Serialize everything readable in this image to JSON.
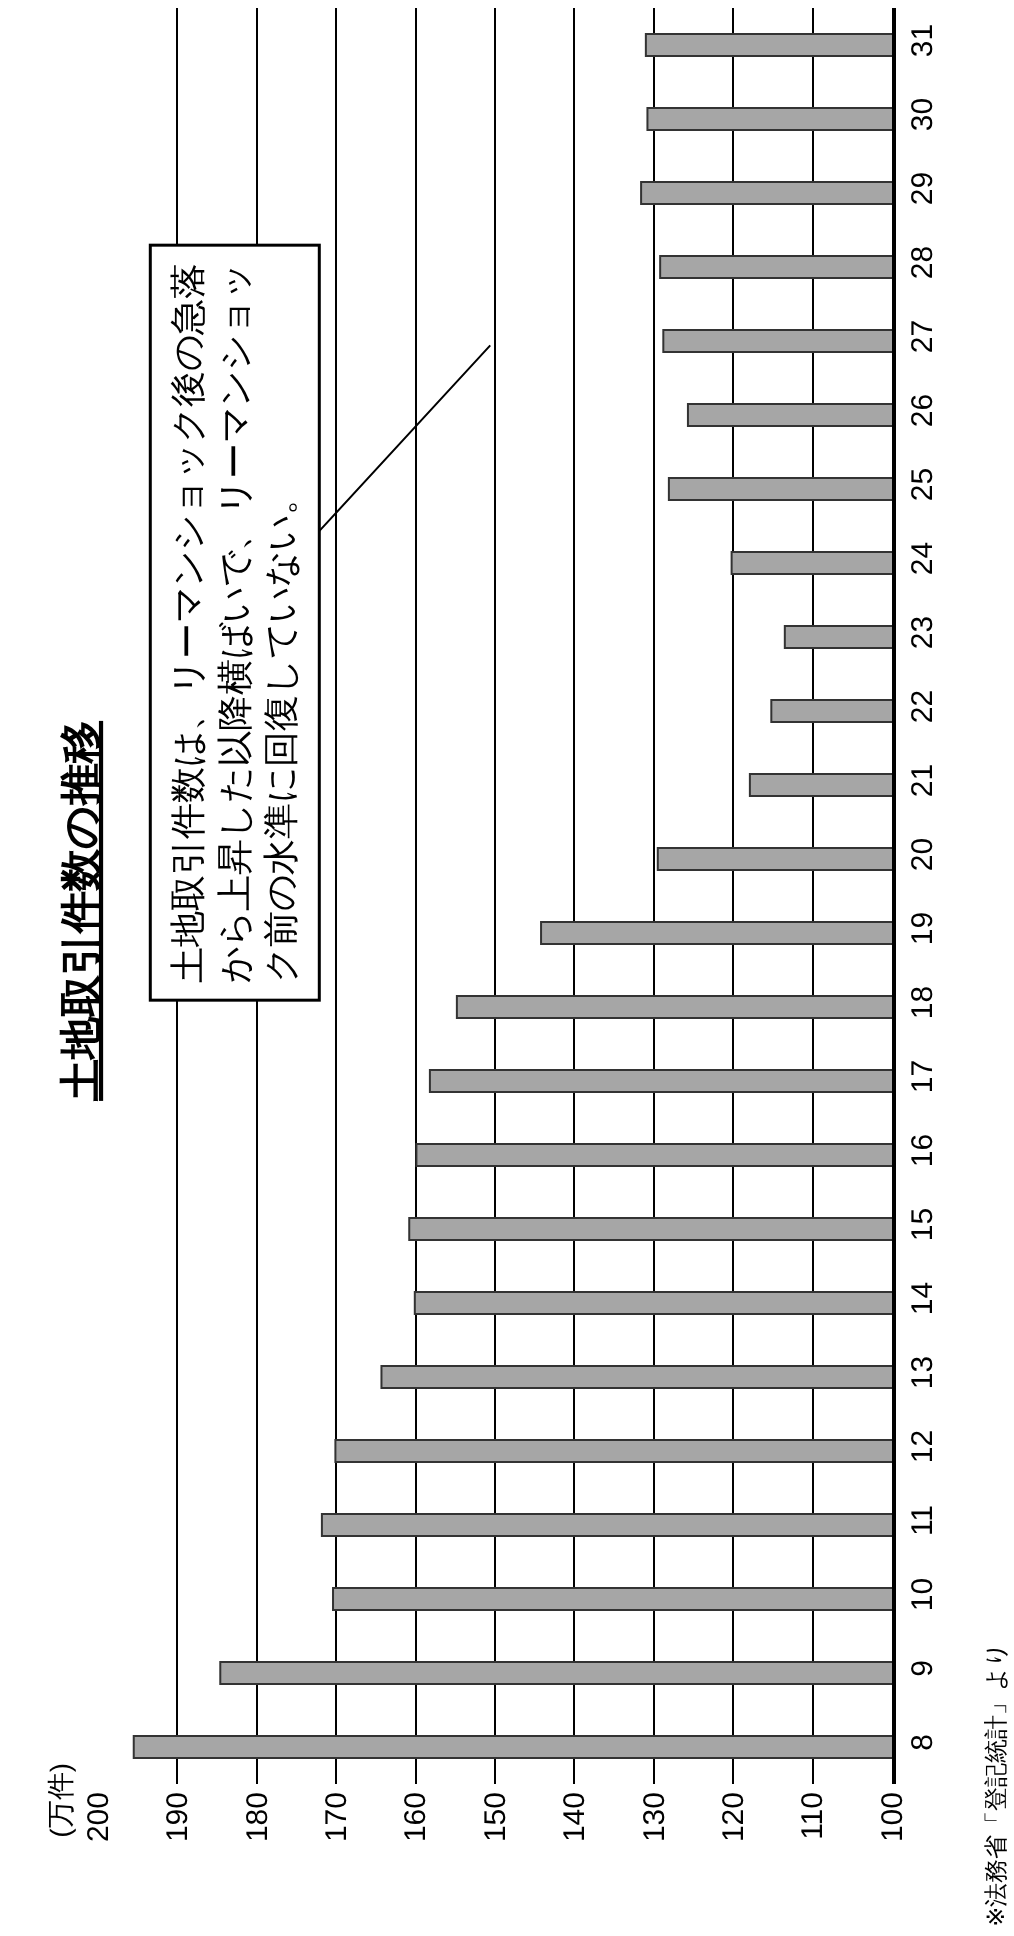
{
  "chart_data": {
    "type": "bar",
    "orientation": "horizontal",
    "title": "土地取引件数の推移",
    "categories": [
      "31",
      "30",
      "29",
      "28",
      "27",
      "26",
      "25",
      "24",
      "23",
      "22",
      "21",
      "20",
      "19",
      "18",
      "17",
      "16",
      "15",
      "14",
      "13",
      "12",
      "11",
      "10",
      "9",
      "8"
    ],
    "values": [
      131.0,
      130.8,
      131.6,
      129.2,
      128.8,
      125.7,
      128.1,
      120.2,
      113.5,
      115.2,
      117.9,
      129.5,
      144.2,
      154.8,
      158.2,
      159.9,
      160.8,
      160.1,
      164.3,
      170.1,
      171.8,
      170.4,
      184.6,
      195.5
    ],
    "color": "#a6a6a6",
    "xlim": [
      200,
      100
    ],
    "xticks": [
      100,
      110,
      120,
      130,
      140,
      150,
      160,
      170,
      180,
      190,
      200
    ],
    "grid": "x",
    "annotations": [
      "土地取引件数は、リーマンショック後の急落から上昇した以降横ばいで、リーマンショック前の水準に回復していない。",
      "※法務省「登記統計」より",
      "(万件)"
    ]
  }
}
